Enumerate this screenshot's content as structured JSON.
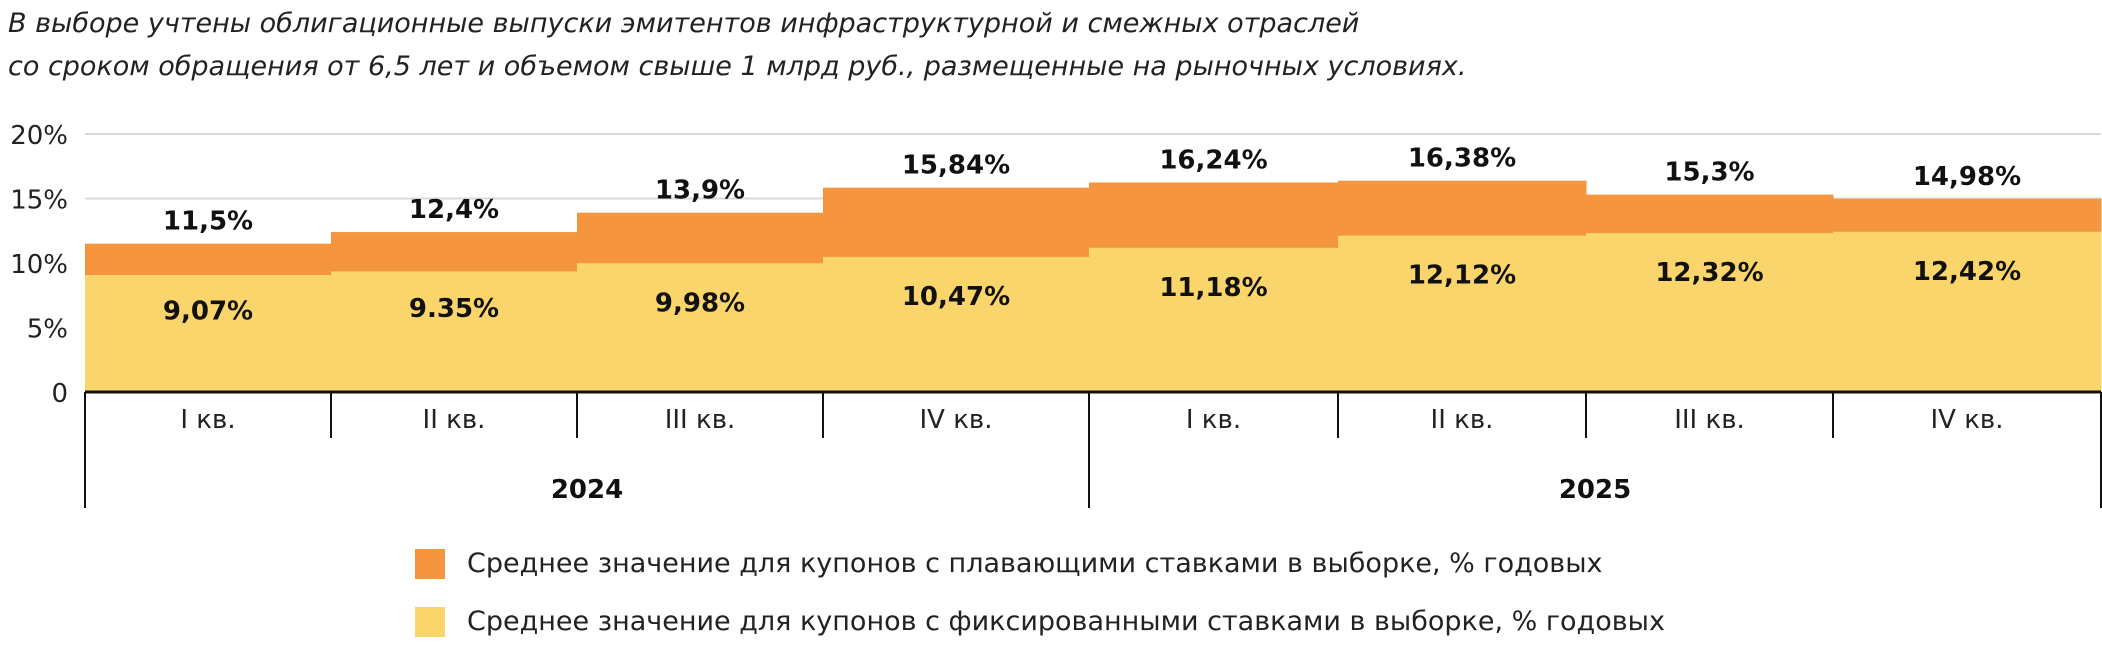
{
  "note": {
    "line1": "В выборе учтены облигационные выпуски эмитентов инфраструктурной и смежных отраслей",
    "line2": "со сроком обращения от 6,5 лет и объемом свыше 1 млрд руб., размещенные на рыночных условиях."
  },
  "chart_data": {
    "type": "area",
    "stepped": true,
    "stacking": "overlay",
    "categories": [
      "I кв.",
      "II кв.",
      "III кв.",
      "IV кв.",
      "I кв.",
      "II кв.",
      "III кв.",
      "IV кв."
    ],
    "groups": [
      {
        "label": "2024",
        "count": 4
      },
      {
        "label": "2025",
        "count": 4
      }
    ],
    "y_ticks": [
      "0",
      "5%",
      "10%",
      "15%",
      "20%"
    ],
    "ylim": [
      0,
      20
    ],
    "grid": true,
    "legend_position": "bottom",
    "series": [
      {
        "name": "Среднее значение для купонов с плавающими ставками в выборке, % годовых",
        "color": "#F5963F",
        "values": [
          11.5,
          12.4,
          13.9,
          15.84,
          16.24,
          16.38,
          15.3,
          14.98
        ],
        "labels": [
          "11,5%",
          "12,4%",
          "13,9%",
          "15,84%",
          "16,24%",
          "16,38%",
          "15,3%",
          "14,98%"
        ]
      },
      {
        "name": "Среднее значение для купонов с фиксированными ставками в выборке, % годовых",
        "color": "#F9D56B",
        "values": [
          9.07,
          9.35,
          9.98,
          10.47,
          11.18,
          12.12,
          12.32,
          12.42
        ],
        "labels": [
          "9,07%",
          "9.35%",
          "9,98%",
          "10,47%",
          "11,18%",
          "12,12%",
          "12,32%",
          "12,42%"
        ]
      }
    ]
  }
}
